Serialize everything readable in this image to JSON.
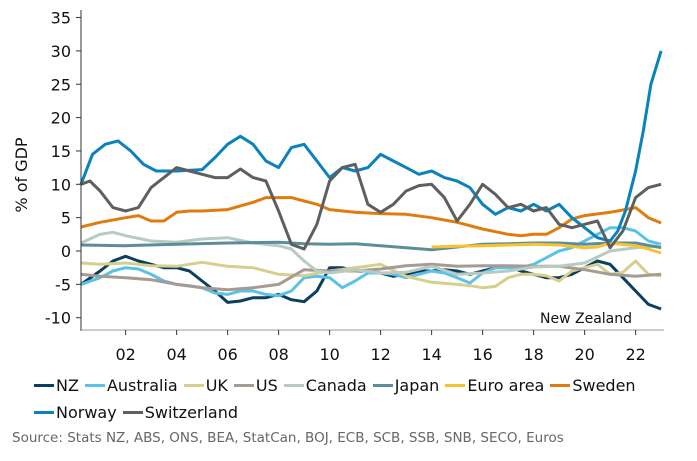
{
  "chart_data": {
    "type": "line",
    "title": "",
    "xlabel": "",
    "ylabel": "% of GDP",
    "ylim": [
      -10,
      35
    ],
    "xlim": [
      2000.25,
      2023.5
    ],
    "yticks": [
      -10,
      -5,
      0,
      5,
      10,
      15,
      20,
      25,
      30,
      35
    ],
    "xticks": [
      2002,
      2004,
      2006,
      2008,
      2010,
      2012,
      2014,
      2016,
      2018,
      2020,
      2022
    ],
    "xtick_labels": [
      "02",
      "04",
      "06",
      "08",
      "10",
      "12",
      "14",
      "16",
      "18",
      "20",
      "22"
    ],
    "annotation": "New Zealand",
    "legend_position": "bottom",
    "series": [
      {
        "name": "NZ",
        "color": "#0b3f5f",
        "x": [
          2000.25,
          2001,
          2001.5,
          2002,
          2002.5,
          2003,
          2003.5,
          2004,
          2004.5,
          2005,
          2005.5,
          2006,
          2006.5,
          2007,
          2007.5,
          2008,
          2008.5,
          2009,
          2009.5,
          2010,
          2010.5,
          2011,
          2011.5,
          2012,
          2012.5,
          2013,
          2013.5,
          2014,
          2014.5,
          2015,
          2015.5,
          2016,
          2016.5,
          2017,
          2017.5,
          2018,
          2018.5,
          2019,
          2019.5,
          2020,
          2020.5,
          2021,
          2021.5,
          2022,
          2022.5,
          2023
        ],
        "y": [
          -5,
          -3,
          -1.5,
          -0.8,
          -1.5,
          -2,
          -2.5,
          -2.5,
          -3,
          -4.5,
          -6,
          -7.7,
          -7.5,
          -7,
          -7,
          -6.5,
          -7.3,
          -7.6,
          -6,
          -2.5,
          -2.5,
          -3,
          -3,
          -3.3,
          -3.8,
          -3.5,
          -3,
          -3,
          -2.8,
          -3,
          -3.5,
          -3,
          -2.5,
          -2.3,
          -3,
          -3.5,
          -4,
          -4,
          -3.5,
          -2.5,
          -1.5,
          -2,
          -4,
          -6,
          -8,
          -8.7
        ]
      },
      {
        "name": "Australia",
        "color": "#5bc2e7",
        "x": [
          2000.25,
          2001,
          2001.5,
          2002,
          2002.5,
          2003,
          2003.5,
          2004,
          2004.5,
          2005,
          2005.5,
          2006,
          2006.5,
          2007,
          2007.5,
          2008,
          2008.5,
          2009,
          2009.5,
          2010,
          2010.5,
          2011,
          2011.5,
          2012,
          2012.5,
          2013,
          2013.5,
          2014,
          2014.5,
          2015,
          2015.5,
          2016,
          2016.5,
          2017,
          2017.5,
          2018,
          2018.5,
          2019,
          2019.5,
          2020,
          2020.5,
          2021,
          2021.5,
          2022,
          2022.5,
          2023
        ],
        "y": [
          -5,
          -4,
          -3,
          -2.5,
          -2.7,
          -3.5,
          -4.5,
          -5,
          -5.2,
          -5.5,
          -6.3,
          -6.5,
          -6,
          -6,
          -6.5,
          -6.7,
          -6,
          -4,
          -3.8,
          -4,
          -5.5,
          -4.5,
          -3.3,
          -3.3,
          -3.5,
          -4,
          -3.5,
          -3,
          -3.3,
          -4,
          -4.8,
          -3.3,
          -2.5,
          -2.5,
          -2.5,
          -2,
          -1,
          0,
          0.5,
          1.5,
          2.5,
          3.5,
          3.5,
          3,
          1.5,
          1
        ]
      },
      {
        "name": "UK",
        "color": "#d6cf8e",
        "x": [
          2000.25,
          2001,
          2002,
          2003,
          2004,
          2005,
          2006,
          2007,
          2008,
          2009,
          2010,
          2011,
          2012,
          2013,
          2014,
          2015,
          2015.5,
          2016,
          2016.5,
          2017,
          2017.5,
          2018,
          2018.5,
          2019,
          2019.5,
          2020,
          2020.5,
          2021,
          2021.5,
          2022,
          2022.5,
          2023
        ],
        "y": [
          -1.8,
          -2,
          -1.8,
          -2.2,
          -2.3,
          -1.7,
          -2.3,
          -2.5,
          -3.5,
          -3.7,
          -3,
          -2.5,
          -2,
          -3.8,
          -4.7,
          -5,
          -5.2,
          -5.5,
          -5.3,
          -4,
          -3.5,
          -3.5,
          -3.7,
          -4.5,
          -3,
          -2.5,
          -2,
          -3.5,
          -3.2,
          -1.5,
          -3.5,
          -3.7
        ]
      },
      {
        "name": "US",
        "color": "#a59b92",
        "x": [
          2000.25,
          2001,
          2002,
          2003,
          2004,
          2005,
          2006,
          2007,
          2008,
          2009,
          2010,
          2011,
          2012,
          2013,
          2014,
          2015,
          2016,
          2017,
          2018,
          2019,
          2020,
          2021,
          2022,
          2023
        ],
        "y": [
          -3.5,
          -3.8,
          -4,
          -4.3,
          -5,
          -5.5,
          -5.8,
          -5.5,
          -5,
          -2.8,
          -3,
          -3,
          -2.7,
          -2.2,
          -2,
          -2.3,
          -2.2,
          -2.2,
          -2.3,
          -2.3,
          -2.8,
          -3.5,
          -3.8,
          -3.5
        ]
      },
      {
        "name": "Canada",
        "color": "#b8cbc3",
        "x": [
          2000.25,
          2001,
          2001.5,
          2002,
          2003,
          2004,
          2005,
          2006,
          2007,
          2008,
          2008.5,
          2009,
          2009.5,
          2010,
          2011,
          2012,
          2013,
          2014,
          2015,
          2016,
          2017,
          2018,
          2019,
          2020,
          2021,
          2022,
          2023
        ],
        "y": [
          1.2,
          2.5,
          2.8,
          2.3,
          1.5,
          1.3,
          1.8,
          2,
          1.2,
          0.8,
          0.3,
          -1.5,
          -3,
          -3.3,
          -2.8,
          -3.3,
          -3.2,
          -2.3,
          -3.5,
          -3.3,
          -3,
          -2.4,
          -2.3,
          -1.8,
          0,
          0.5,
          0.8
        ]
      },
      {
        "name": "Japan",
        "color": "#5b8e99",
        "x": [
          2000.25,
          2002,
          2004,
          2006,
          2008,
          2009,
          2010,
          2011,
          2012,
          2013,
          2014,
          2015,
          2016,
          2017,
          2018,
          2019,
          2020,
          2021,
          2022,
          2023
        ],
        "y": [
          0.9,
          0.8,
          1,
          1.2,
          1.3,
          1.1,
          1,
          1.1,
          0.8,
          0.5,
          0.2,
          0.6,
          1,
          1.1,
          1.2,
          1.2,
          1,
          1.2,
          1.2,
          0.5
        ]
      },
      {
        "name": "Euro area",
        "color": "#f7c230",
        "x": [
          2014,
          2015,
          2016,
          2017,
          2018,
          2019,
          2020,
          2020.5,
          2021,
          2022,
          2022.5,
          2023
        ],
        "y": [
          0.6,
          0.7,
          0.8,
          0.9,
          1,
          0.9,
          0.5,
          0.6,
          1.2,
          0.8,
          0.3,
          -0.3
        ]
      },
      {
        "name": "Sweden",
        "color": "#e07c0f",
        "x": [
          2000.25,
          2001,
          2002,
          2002.5,
          2003,
          2003.5,
          2004,
          2004.5,
          2005,
          2006,
          2007,
          2007.5,
          2008,
          2008.5,
          2009,
          2009.5,
          2010,
          2011,
          2012,
          2013,
          2014,
          2015,
          2016,
          2017,
          2017.5,
          2018,
          2018.5,
          2019,
          2019.5,
          2020,
          2021,
          2022,
          2022.5,
          2023
        ],
        "y": [
          3.6,
          4.3,
          5,
          5.3,
          4.5,
          4.5,
          5.8,
          6,
          6,
          6.2,
          7.3,
          8,
          8,
          8,
          7.5,
          7,
          6.2,
          5.8,
          5.6,
          5.5,
          5,
          4.3,
          3.3,
          2.5,
          2.3,
          2.5,
          2.5,
          3.5,
          4.8,
          5.3,
          5.8,
          6.5,
          5,
          4.2
        ]
      },
      {
        "name": "Norway",
        "color": "#0a82bd",
        "x": [
          2000.25,
          2000.7,
          2001.2,
          2001.7,
          2002.2,
          2002.7,
          2003.2,
          2004,
          2005,
          2005.5,
          2006,
          2006.5,
          2007,
          2007.5,
          2008,
          2008.5,
          2009,
          2009.5,
          2010,
          2010.5,
          2011,
          2011.5,
          2012,
          2012.5,
          2013,
          2013.5,
          2014,
          2014.5,
          2015,
          2015.5,
          2016,
          2016.5,
          2017,
          2017.5,
          2018,
          2018.5,
          2019,
          2019.5,
          2020,
          2020.5,
          2021,
          2021.3,
          2021.6,
          2022,
          2022.3,
          2022.6,
          2023
        ],
        "y": [
          10,
          14.5,
          16,
          16.5,
          15,
          13,
          12,
          12,
          12.2,
          14,
          16,
          17.2,
          16,
          13.5,
          12.5,
          15.5,
          16,
          13.5,
          11,
          12.5,
          12,
          12.5,
          14.5,
          13.5,
          12.5,
          11.5,
          12,
          11,
          10.5,
          9.5,
          7,
          5.5,
          6.5,
          6,
          7,
          6,
          7,
          5,
          3.5,
          2,
          1.5,
          3,
          6,
          12,
          18,
          25,
          30
        ]
      },
      {
        "name": "Switzerland",
        "color": "#5f5f5f",
        "x": [
          2000.25,
          2000.6,
          2001,
          2001.5,
          2002,
          2002.5,
          2003,
          2003.5,
          2004,
          2004.5,
          2005,
          2005.5,
          2006,
          2006.5,
          2007,
          2007.5,
          2008,
          2008.5,
          2009,
          2009.5,
          2010,
          2010.5,
          2011,
          2011.5,
          2012,
          2012.5,
          2013,
          2013.5,
          2014,
          2014.5,
          2015,
          2015.5,
          2016,
          2016.5,
          2017,
          2017.5,
          2018,
          2018.5,
          2019,
          2019.5,
          2020,
          2020.5,
          2021,
          2021.5,
          2022,
          2022.5,
          2023
        ],
        "y": [
          10,
          10.5,
          9,
          6.5,
          6,
          6.5,
          9.5,
          11,
          12.5,
          12,
          11.5,
          11,
          11,
          12.3,
          11,
          10.5,
          6,
          1,
          0.3,
          4,
          10.5,
          12.5,
          13,
          7,
          5.8,
          7,
          9,
          9.8,
          10,
          8,
          4.5,
          7,
          10,
          8.5,
          6.5,
          7,
          6,
          6.5,
          4,
          3.5,
          4,
          4.5,
          0.5,
          3,
          8,
          9.5,
          10
        ]
      }
    ]
  },
  "legend": {
    "items": [
      {
        "label": "NZ",
        "color": "#0b3f5f"
      },
      {
        "label": "Australia",
        "color": "#5bc2e7"
      },
      {
        "label": "UK",
        "color": "#d6cf8e"
      },
      {
        "label": "US",
        "color": "#a59b92"
      },
      {
        "label": "Canada",
        "color": "#b8cbc3"
      },
      {
        "label": "Japan",
        "color": "#5b8e99"
      },
      {
        "label": "Euro area",
        "color": "#f7c230"
      },
      {
        "label": "Sweden",
        "color": "#e07c0f"
      },
      {
        "label": "Norway",
        "color": "#0a82bd"
      },
      {
        "label": "Switzerland",
        "color": "#5f5f5f"
      }
    ]
  },
  "source": "Source: Stats NZ, ABS, ONS, BEA, StatCan, BOJ, ECB, SCB, SSB, SNB, SECO, Euros"
}
